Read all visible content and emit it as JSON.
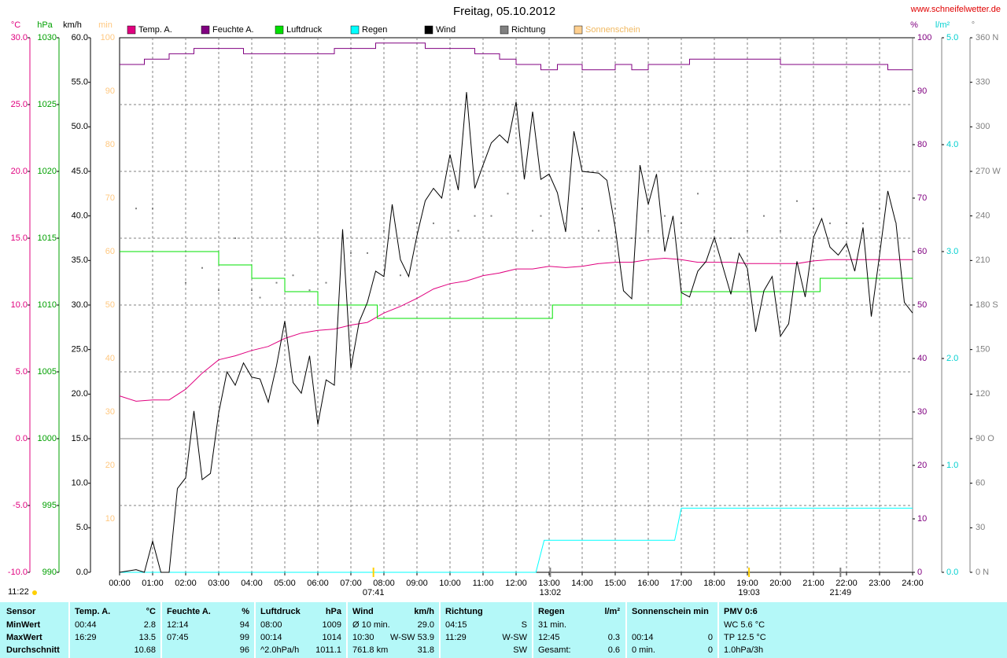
{
  "chart_data": {
    "type": "line",
    "title": "Freitag, 05.10.2012",
    "source": "www.schneifelwetter.de",
    "updated": "11:22",
    "xlim": [
      0,
      24
    ],
    "xticks": [
      {
        "value": 0,
        "label": "00:00"
      },
      {
        "value": 1,
        "label": "01:00"
      },
      {
        "value": 2,
        "label": "02:00"
      },
      {
        "value": 3,
        "label": "03:00"
      },
      {
        "value": 4,
        "label": "04:00"
      },
      {
        "value": 5,
        "label": "05:00"
      },
      {
        "value": 6,
        "label": "06:00"
      },
      {
        "value": 7,
        "label": "07:00"
      },
      {
        "value": 8,
        "label": "08:00"
      },
      {
        "value": 9,
        "label": "09:00"
      },
      {
        "value": 10,
        "label": "10:00"
      },
      {
        "value": 11,
        "label": "11:00"
      },
      {
        "value": 12,
        "label": "12:00"
      },
      {
        "value": 13,
        "label": "13:00"
      },
      {
        "value": 14,
        "label": "14:00"
      },
      {
        "value": 15,
        "label": "15:00"
      },
      {
        "value": 16,
        "label": "16:00"
      },
      {
        "value": 17,
        "label": "17:00"
      },
      {
        "value": 18,
        "label": "18:00"
      },
      {
        "value": 19,
        "label": "19:00"
      },
      {
        "value": 20,
        "label": "20:00"
      },
      {
        "value": 21,
        "label": "21:00"
      },
      {
        "value": 22,
        "label": "22:00"
      },
      {
        "value": 23,
        "label": "23:00"
      },
      {
        "value": 24,
        "label": "24:00"
      }
    ],
    "grid": true,
    "axes": [
      {
        "label": "°C",
        "color": "#e0007f",
        "side": "left",
        "grid": true,
        "ylim": [
          -10,
          30
        ],
        "yticks": [
          {
            "value": -10,
            "label": "-10.0"
          },
          {
            "value": -5,
            "label": "-5.0"
          },
          {
            "value": 0,
            "label": "0.0"
          },
          {
            "value": 5,
            "label": "5.0"
          },
          {
            "value": 10,
            "label": "10.0"
          },
          {
            "value": 15,
            "label": "15.0"
          },
          {
            "value": 20,
            "label": "20.0"
          },
          {
            "value": 25,
            "label": "25.0"
          },
          {
            "value": 30,
            "label": "30.0"
          }
        ]
      },
      {
        "label": "hPa",
        "color": "#00a000",
        "side": "left",
        "ylim": [
          990,
          1030
        ],
        "yticks": [
          990,
          995,
          1000,
          1005,
          1010,
          1015,
          1020,
          1025,
          1030
        ]
      },
      {
        "label": "km/h",
        "color": "#000000",
        "side": "left",
        "ylim": [
          0,
          60
        ],
        "yticks": [
          {
            "value": 0,
            "label": "0.0"
          },
          {
            "value": 5,
            "label": "5.0"
          },
          {
            "value": 10,
            "label": "10.0"
          },
          {
            "value": 15,
            "label": "15.0"
          },
          {
            "value": 20,
            "label": "20.0"
          },
          {
            "value": 25,
            "label": "25.0"
          },
          {
            "value": 30,
            "label": "30.0"
          },
          {
            "value": 35,
            "label": "35.0"
          },
          {
            "value": 40,
            "label": "40.0"
          },
          {
            "value": 45,
            "label": "45.0"
          },
          {
            "value": 50,
            "label": "50.0"
          },
          {
            "value": 55,
            "label": "55.0"
          },
          {
            "value": 60,
            "label": "60.0"
          }
        ]
      },
      {
        "label": "min",
        "color": "#ffc880",
        "side": "left",
        "ylim": [
          0,
          100
        ],
        "yticks": [
          10,
          20,
          30,
          40,
          50,
          60,
          70,
          80,
          90,
          100
        ]
      },
      {
        "label": "%",
        "color": "#800080",
        "side": "right",
        "ylim": [
          0,
          100
        ],
        "yticks": [
          0,
          10,
          20,
          30,
          40,
          50,
          60,
          70,
          80,
          90,
          100
        ]
      },
      {
        "label": "l/m²",
        "color": "#00d0d0",
        "side": "right",
        "ylim": [
          0,
          5
        ],
        "yticks": [
          {
            "value": 0,
            "label": "0.0"
          },
          {
            "value": 1,
            "label": "1.0"
          },
          {
            "value": 2,
            "label": "2.0"
          },
          {
            "value": 3,
            "label": "3.0"
          },
          {
            "value": 4,
            "label": "4.0"
          },
          {
            "value": 5,
            "label": "5.0"
          }
        ]
      },
      {
        "label": "°",
        "color": "#808080",
        "side": "right",
        "ylim": [
          0,
          360
        ],
        "yticks": [
          {
            "value": 0,
            "label": "0 N"
          },
          30,
          60,
          {
            "value": 90,
            "label": "90 O"
          },
          120,
          150,
          {
            "value": 180,
            "label": "180 S"
          },
          210,
          240,
          {
            "value": 270,
            "label": "270 W"
          },
          300,
          330,
          {
            "value": 360,
            "label": "360 N"
          }
        ]
      }
    ],
    "series": [
      {
        "name": "Temp. A.",
        "color": "#e0007f",
        "axis": 0,
        "style": "line",
        "x": [
          0,
          0.5,
          1,
          1.5,
          2,
          2.5,
          3,
          3.5,
          4,
          4.5,
          5,
          5.5,
          6,
          6.5,
          7,
          7.5,
          8,
          8.5,
          9,
          9.5,
          10,
          10.5,
          11,
          11.5,
          12,
          12.5,
          13,
          13.5,
          14,
          14.5,
          15,
          15.5,
          16,
          16.5,
          17,
          17.5,
          18,
          18.5,
          19,
          19.5,
          20,
          20.5,
          21,
          21.5,
          22,
          22.5,
          23,
          23.5,
          24
        ],
        "values": [
          3.2,
          2.8,
          2.9,
          2.9,
          3.7,
          4.9,
          5.9,
          6.2,
          6.6,
          6.9,
          7.5,
          7.9,
          8.1,
          8.2,
          8.5,
          8.7,
          9.4,
          9.9,
          10.5,
          11.2,
          11.6,
          11.8,
          12.2,
          12.4,
          12.7,
          12.7,
          12.9,
          12.8,
          12.9,
          13.1,
          13.2,
          13.2,
          13.4,
          13.5,
          13.4,
          13.2,
          13.2,
          13.2,
          13.1,
          13.1,
          13.1,
          13.1,
          13.3,
          13.4,
          13.4,
          13.4,
          13.4,
          13.4,
          13.4
        ]
      },
      {
        "name": "Feuchte A.",
        "color": "#800080",
        "axis": 4,
        "style": "step",
        "x": [
          0,
          0.75,
          1.5,
          2.25,
          3.75,
          6.5,
          7.75,
          9.25,
          10.75,
          11.5,
          12,
          12.75,
          13.25,
          14,
          15,
          15.5,
          16,
          16.5,
          17.25,
          20,
          23.25,
          24
        ],
        "values": [
          95,
          96,
          97,
          98,
          97,
          98,
          99,
          98,
          97,
          96,
          95,
          94,
          95,
          94,
          95,
          94,
          95,
          95,
          96,
          95,
          94,
          94
        ]
      },
      {
        "name": "Luftdruck",
        "color": "#00e000",
        "axis": 1,
        "style": "step",
        "x": [
          0,
          3,
          4,
          5,
          6,
          7.8,
          13.1,
          17,
          21.2,
          24
        ],
        "values": [
          1014,
          1013,
          1012,
          1011,
          1010,
          1009,
          1010,
          1011,
          1012,
          1012
        ]
      },
      {
        "name": "Regen",
        "color": "#00ffff",
        "axis": 5,
        "style": "line",
        "x": [
          0,
          12.6,
          12.85,
          16.8,
          17,
          24
        ],
        "values": [
          0,
          0,
          0.3,
          0.3,
          0.6,
          0.6
        ]
      },
      {
        "name": "Wind",
        "color": "#000000",
        "axis": 2,
        "style": "line",
        "x": [
          0,
          0.5,
          0.75,
          1,
          1.25,
          1.5,
          1.75,
          2,
          2.25,
          2.5,
          2.75,
          3,
          3.25,
          3.5,
          3.75,
          4,
          4.25,
          4.5,
          4.75,
          5,
          5.25,
          5.5,
          5.75,
          6,
          6.25,
          6.5,
          6.75,
          7,
          7.25,
          7.5,
          7.75,
          8,
          8.25,
          8.5,
          8.75,
          9,
          9.25,
          9.5,
          9.75,
          10,
          10.25,
          10.5,
          10.75,
          11,
          11.25,
          11.5,
          11.75,
          12,
          12.25,
          12.5,
          12.75,
          13,
          13.25,
          13.5,
          13.75,
          14,
          14.5,
          14.75,
          15,
          15.25,
          15.5,
          15.75,
          16,
          16.25,
          16.5,
          16.75,
          17,
          17.25,
          17.5,
          17.75,
          18,
          18.25,
          18.5,
          18.75,
          19,
          19.25,
          19.5,
          19.75,
          20,
          20.25,
          20.5,
          20.75,
          21,
          21.25,
          21.5,
          21.75,
          22,
          22.25,
          22.5,
          22.75,
          23,
          23.25,
          23.5,
          23.75,
          24
        ],
        "values": [
          0,
          0.3,
          0,
          3.5,
          0,
          0,
          9.4,
          10.6,
          18.1,
          10.4,
          11.1,
          17.9,
          22.5,
          21,
          23.5,
          21.9,
          21.7,
          19.1,
          23.2,
          28.2,
          21.3,
          20.1,
          24.3,
          16.6,
          21.6,
          21,
          38.5,
          22.9,
          28.1,
          30.3,
          33.8,
          33.2,
          41.3,
          35.1,
          33.2,
          37.8,
          41.7,
          43.1,
          42,
          46.9,
          42.9,
          53.9,
          43.1,
          45.7,
          48.2,
          49.1,
          48.2,
          52.8,
          44.1,
          51.7,
          44.1,
          44.7,
          42.6,
          38.2,
          49.5,
          45,
          44.8,
          44,
          38.7,
          31.6,
          30.7,
          45.7,
          41.3,
          44.7,
          36,
          40,
          31.4,
          30.9,
          33.8,
          34.9,
          37.6,
          34.4,
          31.2,
          35.8,
          34.1,
          27,
          31.6,
          33.2,
          26.5,
          27.9,
          34.9,
          30.9,
          37.6,
          39.7,
          36.5,
          35.6,
          36.9,
          33.8,
          38.7,
          28.7,
          35.6,
          42.8,
          39.1,
          30.3,
          29.1
        ]
      },
      {
        "name": "Richtung",
        "color": "#808080",
        "axis": 6,
        "style": "dots",
        "x": [
          0.5,
          1,
          2,
          2.5,
          3,
          3.5,
          4,
          4.25,
          4.75,
          5.25,
          5.75,
          6.25,
          7,
          7.5,
          8,
          8.5,
          9,
          9.5,
          10.25,
          10.75,
          11.25,
          11.75,
          12.5,
          12.75,
          13.5,
          14,
          14.5,
          15,
          15.5,
          16,
          16.5,
          17,
          17.5,
          18,
          18.5,
          19,
          19.5,
          20,
          20.5,
          21,
          21.5,
          22,
          22.5,
          23,
          23.5
        ],
        "values": [
          245,
          245,
          195,
          205,
          190,
          225,
          190,
          185,
          195,
          200,
          190,
          195,
          215,
          215,
          230,
          200,
          235,
          235,
          230,
          240,
          240,
          255,
          230,
          240,
          235,
          245,
          230,
          245,
          225,
          230,
          240,
          235,
          255,
          230,
          225,
          230,
          240,
          230,
          250,
          245,
          235,
          235,
          235,
          245,
          235
        ]
      },
      {
        "name": "Sonnenschein",
        "color": "#ffd090",
        "axis": 3,
        "style": "line",
        "x": [],
        "values": []
      }
    ],
    "annotations": [
      {
        "x": 7.683,
        "label": "07:41",
        "color": "#ffd000"
      },
      {
        "x": 13.033,
        "label": "13:02",
        "color": "#808080"
      },
      {
        "x": 19.05,
        "label": "19:03",
        "color": "#ffd000"
      },
      {
        "x": 21.817,
        "label": "21:49",
        "color": "#808080"
      }
    ]
  },
  "table": {
    "columns": [
      {
        "header": {
          "left": "Sensor"
        },
        "rows": [
          {
            "left": "MinWert"
          },
          {
            "left": "MaxWert"
          },
          {
            "left": "Durchschnitt"
          }
        ]
      },
      {
        "header": {
          "left": "Temp. A.",
          "right": "°C"
        },
        "rows": [
          {
            "left": "00:44",
            "right": "2.8"
          },
          {
            "left": "16:29",
            "right": "13.5"
          },
          {
            "right": "10.68"
          }
        ]
      },
      {
        "header": {
          "left": "Feuchte A.",
          "right": "%"
        },
        "rows": [
          {
            "left": "12:14",
            "right": "94"
          },
          {
            "left": "07:45",
            "right": "99"
          },
          {
            "right": "96"
          }
        ]
      },
      {
        "header": {
          "left": "Luftdruck",
          "right": "hPa"
        },
        "rows": [
          {
            "left": "08:00",
            "right": "1009"
          },
          {
            "left": "00:14",
            "right": "1014"
          },
          {
            "left": "^2.0hPa/h",
            "right": "1011.1"
          }
        ]
      },
      {
        "header": {
          "left": "Wind",
          "right": "km/h"
        },
        "rows": [
          {
            "left": "Ø 10 min.",
            "right": "29.0"
          },
          {
            "left": "10:30",
            "right": "W-SW 53.9"
          },
          {
            "left": "761.8 km",
            "right": "31.8"
          }
        ]
      },
      {
        "header": {
          "left": "Richtung"
        },
        "rows": [
          {
            "left": "04:15",
            "right": "S"
          },
          {
            "left": "11:29",
            "right": "W-SW"
          },
          {
            "right": "SW"
          }
        ]
      },
      {
        "header": {
          "left": "Regen",
          "right": "l/m²"
        },
        "rows": [
          {
            "left": "31 min."
          },
          {
            "left": "12:45",
            "right": "0.3"
          },
          {
            "left": "Gesamt:",
            "right": "0.6"
          }
        ]
      },
      {
        "header": {
          "left": "Sonnenschein min"
        },
        "rows": [
          null,
          {
            "left": "00:14",
            "right": "0"
          },
          {
            "left": "0 min.",
            "right": "0"
          }
        ]
      },
      {
        "header": {
          "left": "PMV 0:6"
        },
        "rows": [
          {
            "left": "WC 5.6 °C"
          },
          {
            "left": "TP 12.5 °C"
          },
          {
            "left": "1.0hPa/3h"
          }
        ]
      }
    ]
  }
}
